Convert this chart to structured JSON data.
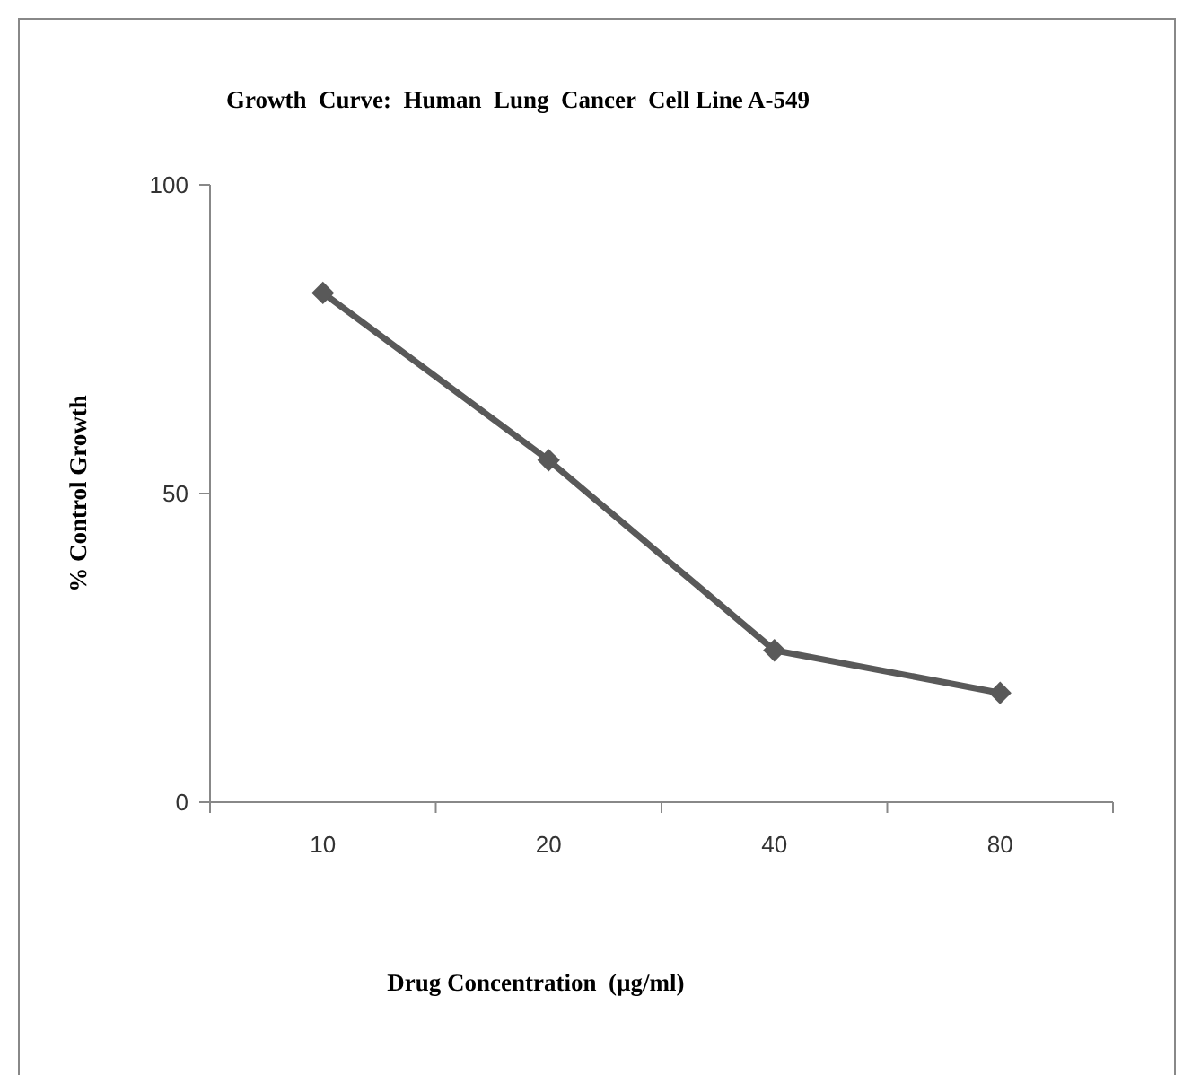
{
  "chart_data": {
    "type": "line",
    "title": "Growth  Curve:  Human  Lung  Cancer  Cell Line A-549",
    "xlabel": "Drug Concentration  (µg/ml)",
    "ylabel": "% Control Growth",
    "categories": [
      "10",
      "20",
      "40",
      "80"
    ],
    "series": [
      {
        "color": "#595959",
        "values": [
          82.5,
          55.4,
          24.6,
          17.7
        ]
      }
    ],
    "ylim": [
      0,
      100
    ],
    "yticks": [
      0,
      50,
      100
    ],
    "marker": "diamond",
    "line_style": "solid",
    "grid": false
  }
}
